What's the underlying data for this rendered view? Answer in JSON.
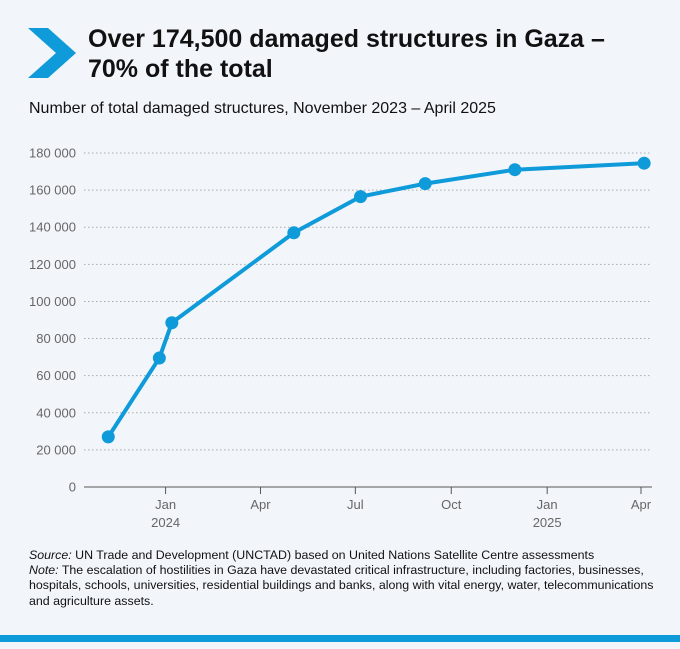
{
  "header": {
    "title": "Over 174,500 damaged structures in Gaza – 70% of the total",
    "subtitle": "Number of total damaged structures, November 2023 – April 2025"
  },
  "colors": {
    "accent": "#0f9ad9",
    "grid": "#aaaaaa",
    "axis_text": "#666666"
  },
  "chart_data": {
    "type": "line",
    "title": "",
    "xlabel": "",
    "ylabel": "",
    "series": [
      {
        "x": [
          "2023-11-07",
          "2023-12-26",
          "2024-01-07",
          "2024-05-03",
          "2024-07-06",
          "2024-09-06",
          "2024-12-01",
          "2025-04-04"
        ],
        "values": [
          27000,
          69500,
          88500,
          137000,
          156500,
          163500,
          171000,
          174500
        ],
        "color": "#0f9ad9"
      }
    ],
    "ylim": [
      0,
      180000
    ],
    "yticks": [
      {
        "value": 0,
        "label": "0"
      },
      {
        "value": 20000,
        "label": "20 000"
      },
      {
        "value": 40000,
        "label": "40 000"
      },
      {
        "value": 60000,
        "label": "60 000"
      },
      {
        "value": 80000,
        "label": "80 000"
      },
      {
        "value": 100000,
        "label": "100 000"
      },
      {
        "value": 120000,
        "label": "120 000"
      },
      {
        "value": 140000,
        "label": "140 000"
      },
      {
        "value": 160000,
        "label": "160 000"
      },
      {
        "value": 180000,
        "label": "180 000"
      }
    ],
    "xlim": [
      "2023-11-01",
      "2025-04-01"
    ],
    "xticks": [
      {
        "date": "2024-01-01",
        "label": "Jan",
        "sublabel": "2024"
      },
      {
        "date": "2024-04-01",
        "label": "Apr",
        "sublabel": ""
      },
      {
        "date": "2024-07-01",
        "label": "Jul",
        "sublabel": ""
      },
      {
        "date": "2024-10-01",
        "label": "Oct",
        "sublabel": ""
      },
      {
        "date": "2025-01-01",
        "label": "Jan",
        "sublabel": "2025"
      },
      {
        "date": "2025-04-01",
        "label": "Apr",
        "sublabel": ""
      }
    ],
    "grid": true,
    "legend": "none"
  },
  "footnote": {
    "source_label": "Source:",
    "source_text": " UN Trade and Development (UNCTAD) based on United Nations Satellite Centre assessments",
    "note_label": "Note:",
    "note_text": " The escalation of hostilities in Gaza have devastated critical infrastructure, including factories, businesses, hospitals, schools, universities, residential buildings and banks, along with vital energy, water, telecommunications and agriculture assets."
  }
}
